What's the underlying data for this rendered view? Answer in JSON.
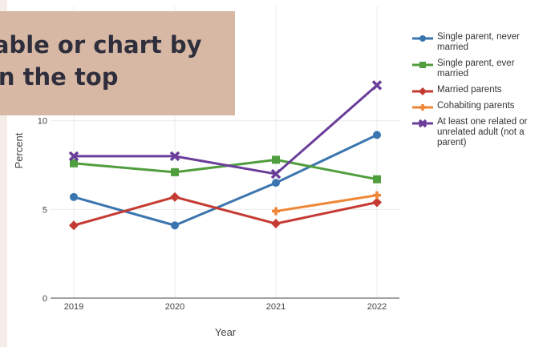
{
  "overlay": {
    "line1": "table or chart by",
    "line2": "on the top"
  },
  "chart_data": {
    "type": "line",
    "x": [
      "2019",
      "2020",
      "2021",
      "2022"
    ],
    "xlabel": "Year",
    "ylabel": "Percent",
    "ylim": [
      0,
      15
    ],
    "yticks": [
      0,
      5,
      10
    ],
    "grid": true,
    "legend_position": "right",
    "series": [
      {
        "name": "Single parent, never married",
        "color": "#3b75af",
        "marker": "circle",
        "values": [
          5.7,
          4.1,
          6.5,
          9.2
        ]
      },
      {
        "name": "Single parent, ever married",
        "color": "#519e3e",
        "marker": "square",
        "values": [
          7.6,
          7.1,
          7.8,
          6.7
        ]
      },
      {
        "name": "Married parents",
        "color": "#c53a32",
        "marker": "diamond",
        "values": [
          4.1,
          5.7,
          4.2,
          5.4
        ]
      },
      {
        "name": "Cohabiting parents",
        "color": "#ef8636",
        "marker": "cross",
        "values": [
          null,
          null,
          4.9,
          5.8
        ]
      },
      {
        "name": "At least one related or unrelated adult (not a parent)",
        "color": "#6a3d9a",
        "marker": "x",
        "values": [
          8.0,
          8.0,
          7.0,
          12.0
        ]
      }
    ]
  }
}
